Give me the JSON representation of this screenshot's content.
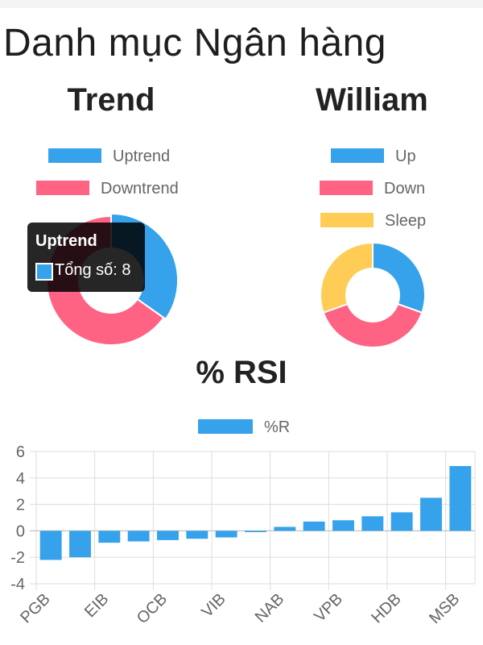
{
  "page": {
    "title": "Danh mục Ngân hàng"
  },
  "colors": {
    "blue": "#36a2eb",
    "red": "#ff6384",
    "yellow": "#ffcd56",
    "tooltip_bg": "#000000"
  },
  "trend": {
    "title": "Trend",
    "legend": [
      {
        "label": "Uptrend",
        "color": "#36a2eb"
      },
      {
        "label": "Downtrend",
        "color": "#ff6384"
      }
    ],
    "tooltip": {
      "title": "Uptrend",
      "body": "Tổng số: 8"
    }
  },
  "william": {
    "title": "William",
    "legend": [
      {
        "label": "Up",
        "color": "#36a2eb"
      },
      {
        "label": "Down",
        "color": "#ff6384"
      },
      {
        "label": "Sleep",
        "color": "#ffcd56"
      }
    ]
  },
  "rsi": {
    "title": "% RSI",
    "legend": [
      {
        "label": "%R",
        "color": "#36a2eb"
      }
    ]
  },
  "chart_data": [
    {
      "type": "pie",
      "title": "Trend",
      "labels": [
        "Uptrend",
        "Downtrend"
      ],
      "values": [
        8,
        15
      ],
      "colors": [
        "#36a2eb",
        "#ff6384"
      ],
      "legend": "top",
      "highlighted": "Uptrend"
    },
    {
      "type": "pie",
      "title": "William",
      "labels": [
        "Up",
        "Down",
        "Sleep"
      ],
      "values": [
        7,
        9,
        7
      ],
      "colors": [
        "#36a2eb",
        "#ff6384",
        "#ffcd56"
      ],
      "legend": "top"
    },
    {
      "type": "bar",
      "title": "% RSI",
      "series": [
        {
          "name": "%R",
          "values": [
            -2.2,
            -2.0,
            -0.9,
            -0.8,
            -0.7,
            -0.6,
            -0.5,
            -0.1,
            0.3,
            0.7,
            0.8,
            1.1,
            1.4,
            2.5,
            4.9
          ]
        }
      ],
      "categories": [
        "PGB",
        "",
        "EIB",
        "",
        "OCB",
        "",
        "VIB",
        "",
        "NAB",
        "",
        "VPB",
        "",
        "HDB",
        "",
        "MSB"
      ],
      "ylim": [
        -4,
        6
      ],
      "yticks": [
        -4,
        -2,
        0,
        2,
        4,
        6
      ],
      "grid": true,
      "legend": "top",
      "color": "#36a2eb"
    }
  ]
}
